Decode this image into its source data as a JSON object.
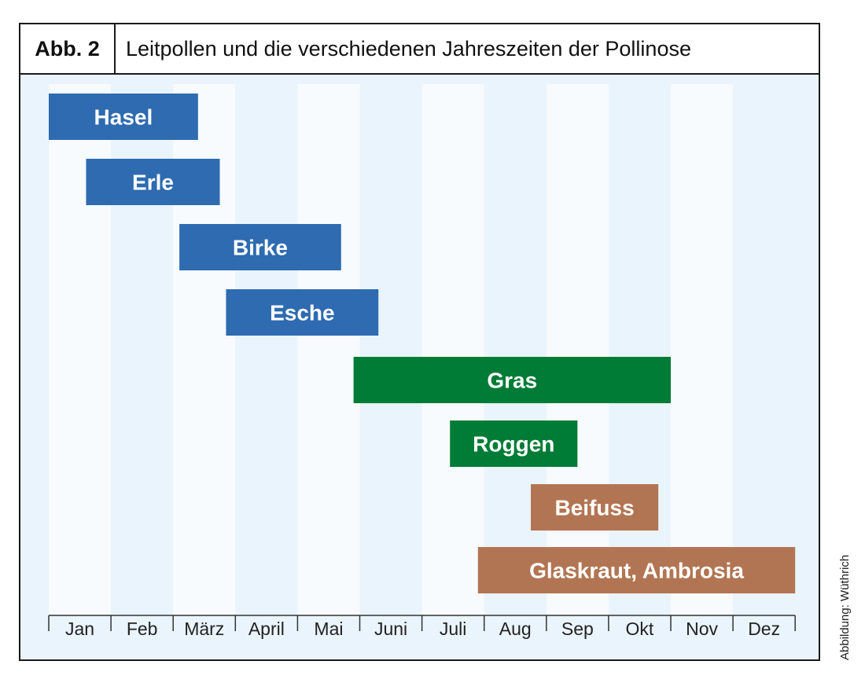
{
  "figure": {
    "label": "Abb. 2",
    "title": "Leitpollen und die verschiedenen Jahreszeiten der Pollinose"
  },
  "credit": "Abbildung: Wüthrich",
  "colors": {
    "background": "#eaf4fc",
    "stripe_light": "#f7fbfe",
    "trees": "#2e6bb0",
    "grasses": "#007c36",
    "weeds": "#b27553",
    "label_text": "#ffffff"
  },
  "chart_data": {
    "type": "bar",
    "orientation": "horizontal-range",
    "x_axis": {
      "unit": "month",
      "ticks": [
        "Jan",
        "Feb",
        "März",
        "April",
        "Mai",
        "Juni",
        "Juli",
        "Aug",
        "Sep",
        "Okt",
        "Nov",
        "Dez"
      ],
      "range": [
        0,
        12
      ]
    },
    "grid": "alternating month stripes",
    "series": [
      {
        "label": "Hasel",
        "start": 0.0,
        "end": 2.4,
        "group": "trees"
      },
      {
        "label": "Erle",
        "start": 0.6,
        "end": 2.75,
        "group": "trees"
      },
      {
        "label": "Birke",
        "start": 2.1,
        "end": 4.7,
        "group": "trees"
      },
      {
        "label": "Esche",
        "start": 2.85,
        "end": 5.3,
        "group": "trees"
      },
      {
        "label": "Gras",
        "start": 4.9,
        "end": 10.0,
        "group": "grasses"
      },
      {
        "label": "Roggen",
        "start": 6.45,
        "end": 8.5,
        "group": "grasses"
      },
      {
        "label": "Beifuss",
        "start": 7.75,
        "end": 9.8,
        "group": "weeds"
      },
      {
        "label": "Glaskraut, Ambrosia",
        "start": 6.9,
        "end": 12.0,
        "group": "weeds"
      }
    ]
  }
}
